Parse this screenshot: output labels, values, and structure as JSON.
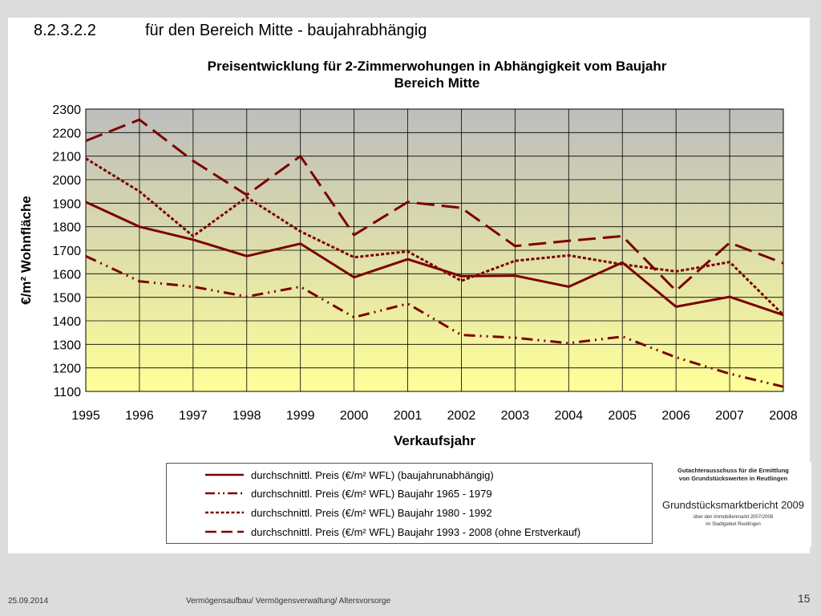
{
  "slide": {
    "section_number": "8.2.3.2.2",
    "section_title": "für den Bereich Mitte - baujahrabhängig",
    "footer_date": "25.09.2014",
    "footer_text": "Vermögensaufbau/ Vermögensverwaltung/ Altersvorsorge",
    "page_number": "15"
  },
  "logo": {
    "org": "Gutachterausschuss für die Ermittlung\nvon Grundstückswerten in Reutlingen",
    "title": "Grundstücksmarktbericht 2009",
    "sub": "über den Immobilienmarkt 2007/2008\nim Stadtgebiet Reutlingen"
  },
  "colors": {
    "series": "#7b0000",
    "plot_top": "#bdbdbd",
    "plot_bottom": "#ffff99",
    "grid": "#000000"
  },
  "chart_data": {
    "type": "line",
    "title": "Preisentwicklung für 2-Zimmerwohungen in Abhängigkeit vom Baujahr",
    "subtitle": "Bereich Mitte",
    "xlabel": "Verkaufsjahr",
    "ylabel": "€/m² Wohnfläche",
    "ylim": [
      1100,
      2300
    ],
    "ytick_step": 100,
    "grid": true,
    "legend_position": "bottom",
    "x": [
      "1995",
      "1996",
      "1997",
      "1998",
      "1999",
      "2000",
      "2001",
      "2002",
      "2003",
      "2004",
      "2005",
      "2006",
      "2007",
      "2008"
    ],
    "series": [
      {
        "name": "durchschnittl. Preis (€/m² WFL) (baujahrunabhängig)",
        "dash": "solid",
        "values": [
          1905,
          1800,
          1745,
          1675,
          1728,
          1585,
          1662,
          1590,
          1592,
          1545,
          1648,
          1460,
          1502,
          1425
        ]
      },
      {
        "name": "durchschnittl. Preis (€/m² WFL) Baujahr 1965 - 1979",
        "dash": "dashdotdot",
        "values": [
          1675,
          1568,
          1545,
          1503,
          1545,
          1415,
          1473,
          1340,
          1328,
          1305,
          1333,
          1245,
          1175,
          1120
        ]
      },
      {
        "name": "durchschnittl. Preis (€/m² WFL) Baujahr 1980 - 1992",
        "dash": "dotted",
        "values": [
          2090,
          1950,
          1760,
          1925,
          1780,
          1670,
          1695,
          1570,
          1655,
          1678,
          1640,
          1610,
          1650,
          1425
        ]
      },
      {
        "name": "durchschnittl. Preis (€/m² WFL) Baujahr 1993 - 2008 (ohne Erstverkauf)",
        "dash": "longdash",
        "values": [
          2165,
          2255,
          2080,
          1935,
          2100,
          1765,
          1905,
          1880,
          1718,
          1740,
          1760,
          1528,
          1732,
          1645
        ]
      }
    ]
  }
}
